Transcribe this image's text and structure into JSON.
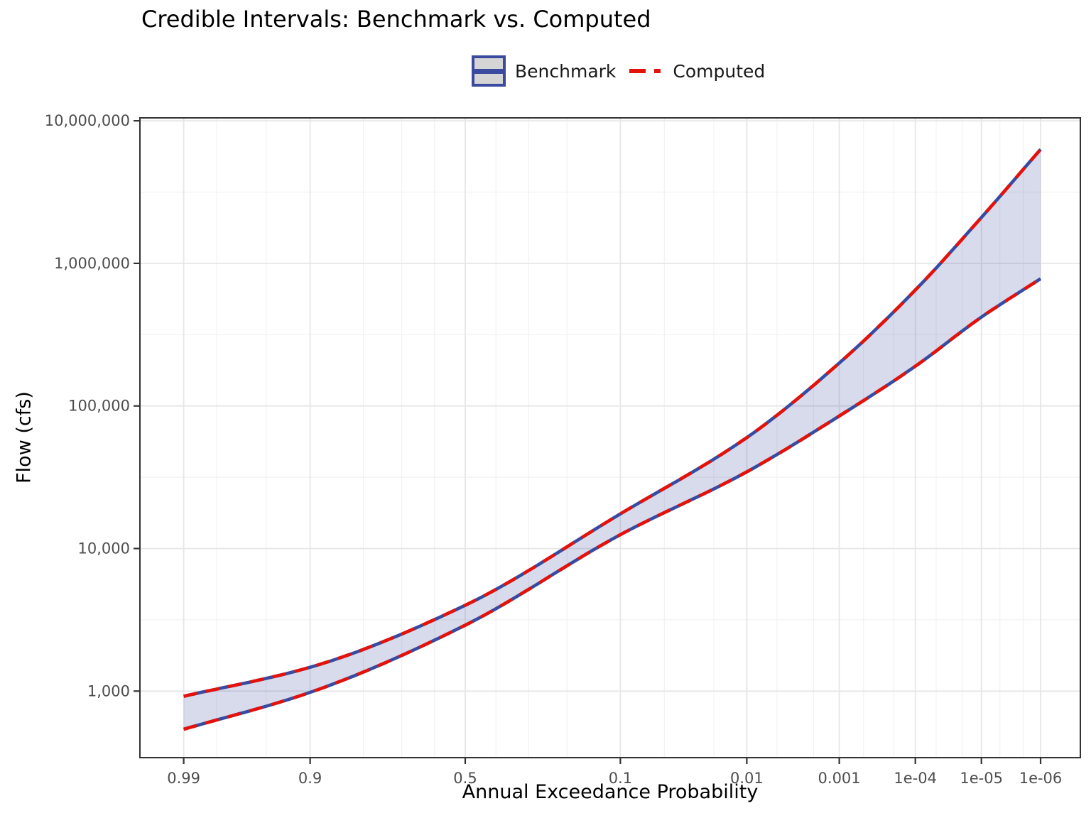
{
  "title": "Credible Intervals: Benchmark vs. Computed",
  "legend": {
    "benchmark_label": "Benchmark",
    "computed_label": "Computed"
  },
  "axes": {
    "x": {
      "label": "Annual Exceedance Probability",
      "tick_labels": [
        "0.99",
        "0.9",
        "0.5",
        "0.1",
        "0.01",
        "0.001",
        "1e-04",
        "1e-05",
        "1e-06"
      ],
      "tick_values": [
        0.99,
        0.9,
        0.5,
        0.1,
        0.01,
        0.001,
        0.0001,
        1e-05,
        1e-06
      ],
      "minor_values": [
        0.98,
        0.95,
        0.8,
        0.7,
        0.6,
        0.4,
        0.3,
        0.2,
        0.05,
        0.02,
        0.005,
        0.002,
        0.0005,
        0.0002,
        5e-05,
        2e-05,
        5e-06,
        2e-06
      ]
    },
    "y": {
      "label": "Flow (cfs)",
      "tick_labels": [
        "10,000,000",
        "1,000,000",
        "100,000",
        "10,000",
        "1,000"
      ],
      "tick_values": [
        10000000,
        1000000,
        100000,
        10000,
        1000
      ],
      "minor_values": [
        3162278,
        316228,
        31623,
        3162
      ]
    }
  },
  "colors": {
    "benchmark_blue": "#3A4A9E",
    "computed_red": "#E3120B",
    "band_fill": "rgba(58,74,158,0.2)",
    "gridline_major": "#E6E6E6",
    "gridline_minor": "#F2F2F2",
    "axis_text": "#4D4D4D",
    "panel_border": "#333333",
    "tick_mark": "#333333",
    "legend_key_fill": "#D5D5D5"
  },
  "chart_data": {
    "type": "line",
    "title": "Credible Intervals: Benchmark vs. Computed",
    "xlabel": "Annual Exceedance Probability",
    "ylabel": "Flow (cfs)",
    "x_scale": "probit (normal-quantile of AEP, probability decreasing to the right)",
    "y_scale": "log10",
    "xlim": [
      0.9963,
      2e-07
    ],
    "ylim": [
      340,
      10500000
    ],
    "grid": "major + minor gridlines, light gray, white panel",
    "legend_position": "top-center",
    "x": [
      0.99,
      0.9,
      0.5,
      0.1,
      0.01,
      0.001,
      0.0001,
      1e-05,
      1e-06
    ],
    "series": [
      {
        "name": "Benchmark upper credible bound",
        "color": "#3A4A9E",
        "style": "solid",
        "values": [
          920,
          1470,
          4000,
          17500,
          60000,
          200000,
          650000,
          2100000,
          6300000
        ]
      },
      {
        "name": "Benchmark lower credible bound",
        "color": "#3A4A9E",
        "style": "solid",
        "values": [
          540,
          980,
          2900,
          12500,
          34500,
          85000,
          190000,
          420000,
          780000
        ]
      },
      {
        "name": "Computed upper credible bound",
        "color": "#E3120B",
        "style": "dashed",
        "values": [
          920,
          1470,
          4000,
          17500,
          60000,
          200000,
          650000,
          2100000,
          6300000
        ]
      },
      {
        "name": "Computed lower credible bound",
        "color": "#E3120B",
        "style": "dashed",
        "values": [
          540,
          980,
          2900,
          12500,
          34500,
          85000,
          190000,
          420000,
          780000
        ]
      }
    ],
    "band": {
      "between": "lower and upper credible bounds",
      "fill": "rgba(58,74,158,0.2)"
    }
  }
}
